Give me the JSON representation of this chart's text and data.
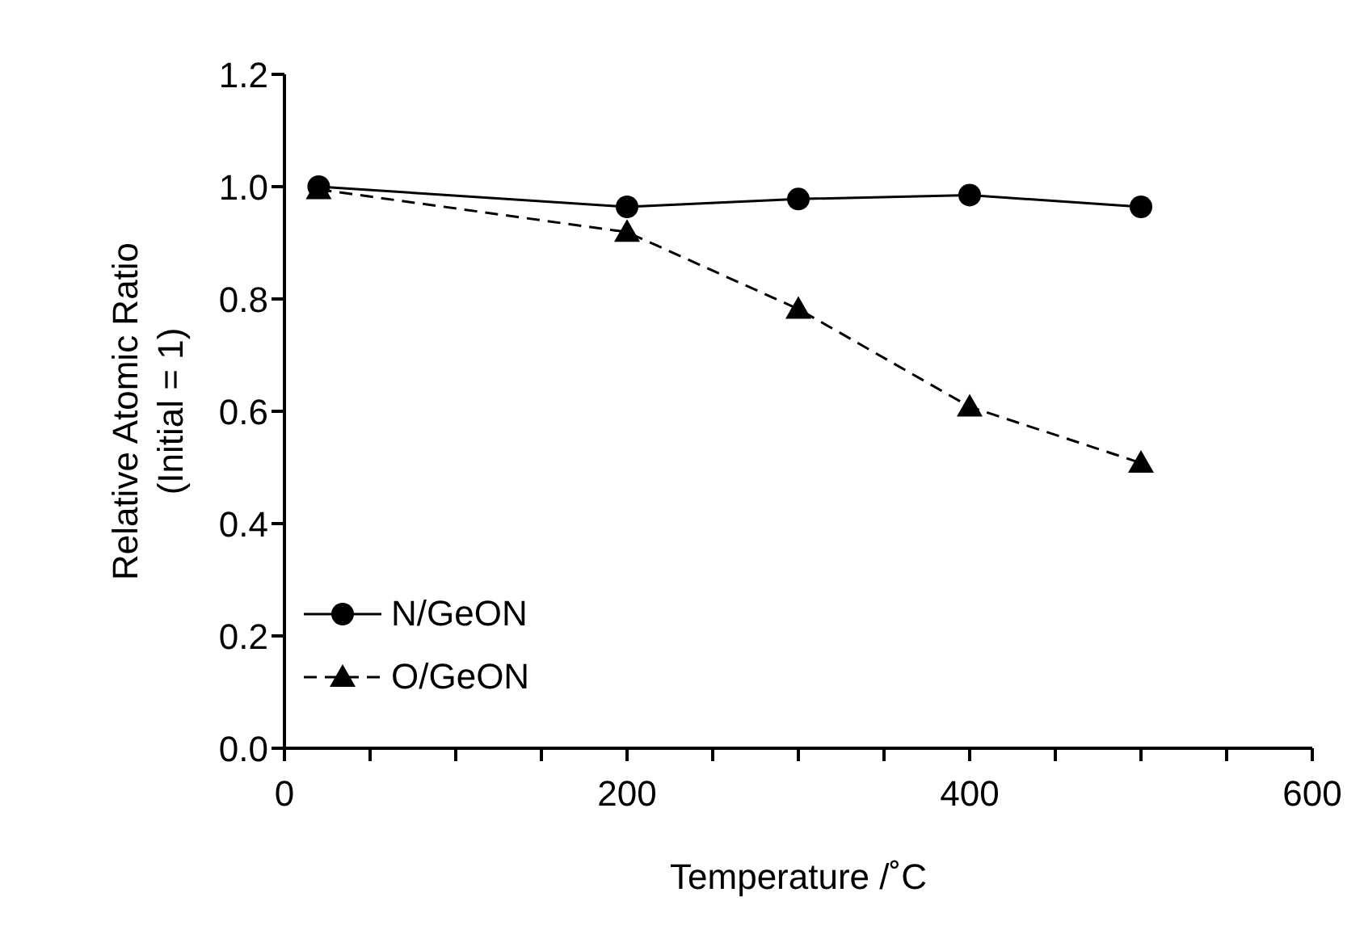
{
  "chart_data": {
    "type": "line",
    "xlabel": "Temperature /˚C",
    "ylabel": "Relative Atomic Ratio\n(Initial = 1)",
    "x": [
      20,
      200,
      300,
      400,
      500
    ],
    "series": [
      {
        "name": "N/GeON",
        "color": "#000000",
        "values": [
          1.0,
          0.964,
          0.978,
          0.985,
          0.964
        ],
        "marker": "circle",
        "line_style": "solid"
      },
      {
        "name": "O/GeON",
        "color": "#000000",
        "values": [
          0.995,
          0.919,
          0.782,
          0.608,
          0.508
        ],
        "marker": "triangle",
        "line_style": "dashed"
      }
    ],
    "xlim": [
      0,
      600
    ],
    "xticks": [
      0,
      {
        "value": 50,
        "label": null
      },
      {
        "value": 100,
        "label": null
      },
      {
        "value": 150,
        "label": null
      },
      200,
      {
        "value": 250,
        "label": null
      },
      {
        "value": 300,
        "label": null
      },
      {
        "value": 350,
        "label": null
      },
      400,
      {
        "value": 450,
        "label": null
      },
      {
        "value": 500,
        "label": null
      },
      {
        "value": 550,
        "label": null
      },
      600
    ],
    "ylim": [
      0,
      1.2
    ],
    "yticks": [
      {
        "value": 0,
        "label": "0.0"
      },
      {
        "value": 0.2,
        "label": "0.2"
      },
      {
        "value": 0.4,
        "label": "0.4"
      },
      {
        "value": 0.6,
        "label": "0.6"
      },
      {
        "value": 0.8,
        "label": "0.8"
      },
      {
        "value": 1.0,
        "label": "1.0"
      },
      {
        "value": 1.2,
        "label": "1.2"
      }
    ],
    "grid": false,
    "legend": "bottom left"
  }
}
